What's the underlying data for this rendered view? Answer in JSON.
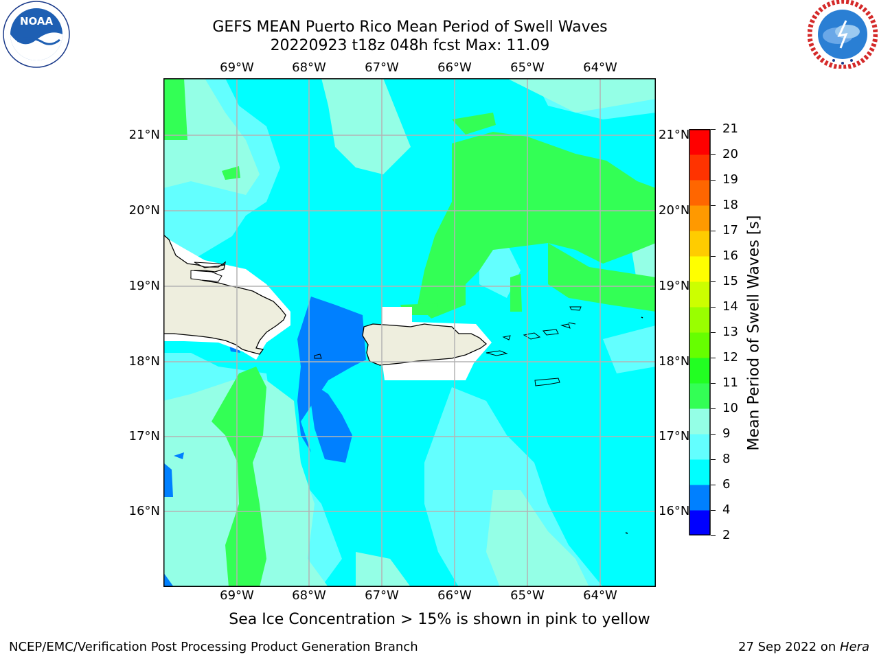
{
  "header": {
    "title_line1": "GEFS MEAN Puerto Rico Mean Period of Swell Waves",
    "title_line2": "20220923 t18z 048h fcst   Max: 11.09"
  },
  "logos": {
    "left": {
      "text": "NOAA",
      "ring_text": "NATIONAL OCEANIC AND ATMOSPHERIC ADMINISTRATION · U.S. DEPARTMENT OF COMMERCE"
    },
    "right": {
      "ring_text": "NATIONAL WEATHER SERVICE"
    }
  },
  "map": {
    "lon_labels": [
      "69°W",
      "68°W",
      "67°W",
      "66°W",
      "65°W",
      "64°W"
    ],
    "lat_labels": [
      "21°N",
      "20°N",
      "19°N",
      "18°N",
      "17°N",
      "16°N"
    ],
    "colors": {
      "c4_6": "#0080ff",
      "c6_8": "#00ffff",
      "c8_9": "#63ffff",
      "c9_10": "#94ffe6",
      "c10_11": "#33ff55",
      "land": "#eeeede",
      "grid": "#b4b4b4"
    }
  },
  "colorbar": {
    "label": "Mean Period of Swell Waves [s]",
    "ticks": [
      "21",
      "20",
      "19",
      "18",
      "17",
      "16",
      "15",
      "14",
      "13",
      "12",
      "11",
      "10",
      "9",
      "8",
      "6",
      "4",
      "2"
    ],
    "colors_bottom_to_top": [
      "#0000ff",
      "#0080ff",
      "#00ffff",
      "#63ffff",
      "#94ffe6",
      "#33ff55",
      "#22ff22",
      "#66ff00",
      "#99ff00",
      "#ccff00",
      "#ffff00",
      "#ffcc00",
      "#ff9900",
      "#ff6600",
      "#ff3300",
      "#ff0000"
    ]
  },
  "bottom_text": "Sea Ice Concentration > 15% is shown in pink to yellow",
  "footer": {
    "left": "NCEP/EMC/Verification Post Processing Product Generation Branch",
    "right_prefix": "27 Sep 2022 on ",
    "right_host": "Hera"
  }
}
